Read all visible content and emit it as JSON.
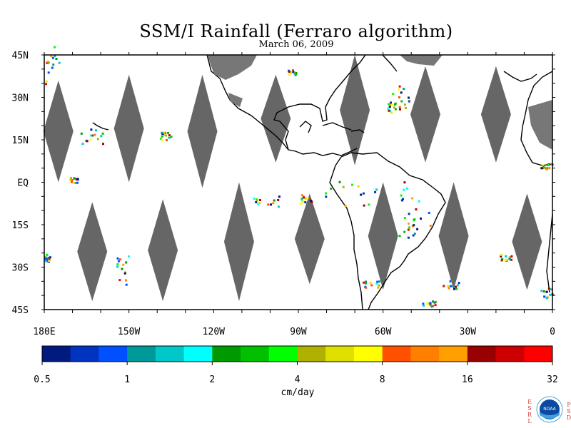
{
  "title": "SSM/I Rainfall (Ferraro algorithm)",
  "subtitle": "March 06, 2009",
  "lat_labels": [
    "45N",
    "30N",
    "15N",
    "EQ",
    "15S",
    "30S",
    "45S"
  ],
  "lon_labels": [
    "180E",
    "150W",
    "120W",
    "90W",
    "60W",
    "30W",
    "0"
  ],
  "colorbar": {
    "unit": "cm/day",
    "tick_labels": [
      "0.5",
      "1",
      "2",
      "4",
      "8",
      "16",
      "32"
    ],
    "colors": [
      "#001a80",
      "#0033c0",
      "#0050ff",
      "#009999",
      "#00c8c8",
      "#00ffff",
      "#009900",
      "#00c000",
      "#00ff00",
      "#b0b000",
      "#e0e000",
      "#ffff00",
      "#ff5000",
      "#ff8000",
      "#ffa000",
      "#990000",
      "#cc0000",
      "#ff0000"
    ]
  },
  "logo": {
    "left_letters": [
      "E",
      "S",
      "R",
      "L"
    ],
    "center_text": "NOAA",
    "right_letters": [
      "P",
      "S",
      "D"
    ]
  },
  "map": {
    "lon_range": [
      180,
      360
    ],
    "lat_range": [
      -45,
      45
    ],
    "gap_color": "#666666",
    "swath_gaps": [
      {
        "lon": 185,
        "lat_top": 36,
        "lat_bot": 0
      },
      {
        "lon": 210,
        "lat_top": 38,
        "lat_bot": 0
      },
      {
        "lon": 236,
        "lat_top": 38,
        "lat_bot": -2
      },
      {
        "lon": 262,
        "lat_top": 38,
        "lat_bot": 7
      },
      {
        "lon": 290,
        "lat_top": 45,
        "lat_bot": 6
      },
      {
        "lon": 315,
        "lat_top": 41,
        "lat_bot": 7
      },
      {
        "lon": 340,
        "lat_top": 41,
        "lat_bot": 7
      },
      {
        "lon": 197,
        "lat_top": -7,
        "lat_bot": -42
      },
      {
        "lon": 222,
        "lat_top": -6,
        "lat_bot": -42
      },
      {
        "lon": 249,
        "lat_top": 0,
        "lat_bot": -42
      },
      {
        "lon": 274,
        "lat_top": -4,
        "lat_bot": -36
      },
      {
        "lon": 300,
        "lat_top": 0,
        "lat_bot": -38
      },
      {
        "lon": 325,
        "lat_top": 0,
        "lat_bot": -38
      },
      {
        "lon": 351,
        "lat_top": -4,
        "lat_bot": -38
      }
    ]
  }
}
